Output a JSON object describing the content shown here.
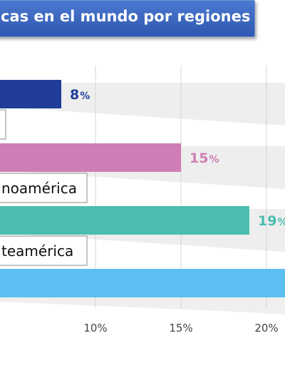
{
  "title": "cas en el mundo por regiones",
  "chart_data": {
    "type": "bar",
    "orientation": "horizontal",
    "x_ticks": [
      "10%",
      "15%",
      "20%"
    ],
    "tick_values": [
      10,
      15,
      20
    ],
    "series": [
      {
        "label": "",
        "value": 8,
        "value_label": "8",
        "unit": "%",
        "color": "#1f3d99"
      },
      {
        "label": "noamérica",
        "value": 15,
        "value_label": "15",
        "unit": "%",
        "color": "#cf7db4"
      },
      {
        "label": "teamérica",
        "value": 19,
        "value_label": "19",
        "unit": "%",
        "color": "#4bbdb0"
      },
      {
        "label": "",
        "value": 30,
        "value_label": "",
        "unit": "",
        "color": "#5bbff2"
      }
    ]
  }
}
